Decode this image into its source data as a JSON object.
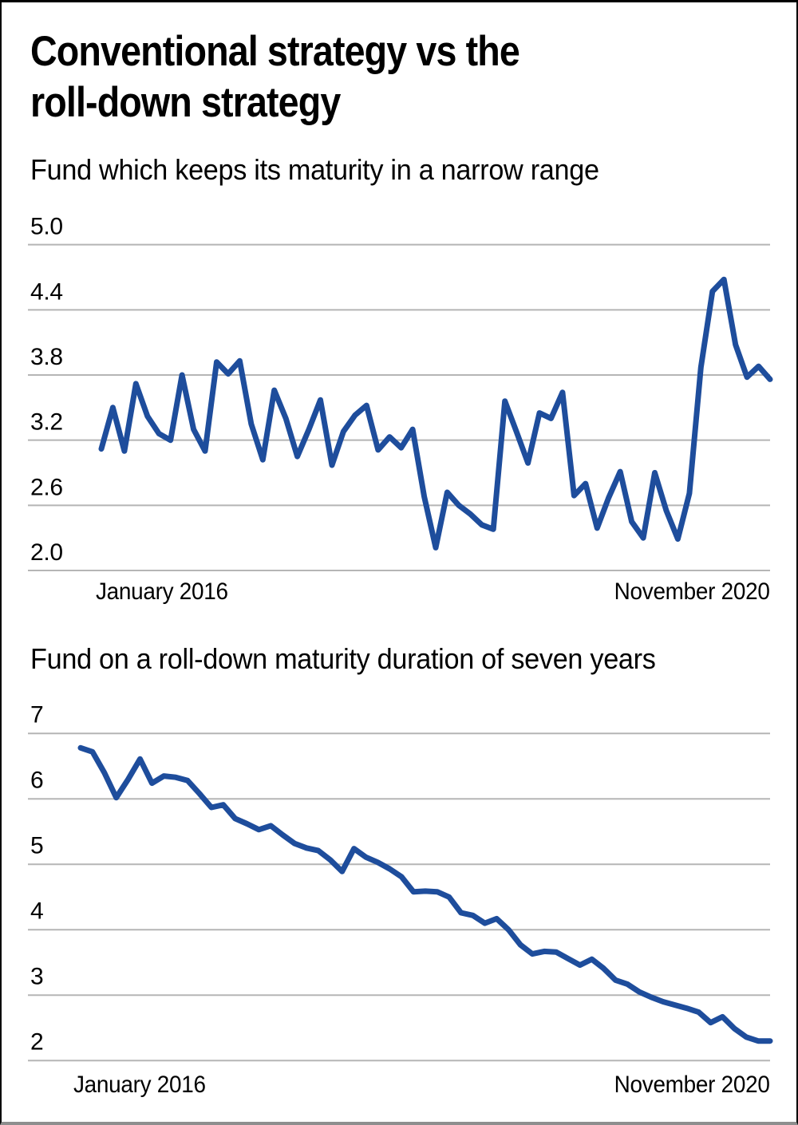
{
  "header": {
    "title_line1": "Conventional strategy vs the",
    "title_line2": "roll-down strategy"
  },
  "colors": {
    "line_blue": "#1e4d9c",
    "gridline_gray": "#b5b5b5",
    "text_black": "#000000"
  },
  "chart_data": [
    {
      "type": "line",
      "title": "Fund which keeps its maturity in a narrow range",
      "x_axis": {
        "start_label": "January 2016",
        "end_label": "November 2020",
        "interval": "monthly"
      },
      "y_ticks": [
        "5.0",
        "4.4",
        "3.8",
        "3.2",
        "2.6",
        "2.0"
      ],
      "ylim": [
        2.0,
        5.0
      ],
      "grid": true,
      "legend": "none",
      "line_color": "#1e4d9c",
      "values": [
        3.12,
        3.5,
        3.1,
        3.72,
        3.42,
        3.26,
        3.2,
        3.8,
        3.3,
        3.1,
        3.92,
        3.81,
        3.93,
        3.35,
        3.02,
        3.66,
        3.4,
        3.05,
        3.3,
        3.57,
        2.97,
        3.28,
        3.43,
        3.52,
        3.11,
        3.23,
        3.13,
        3.3,
        2.68,
        2.21,
        2.72,
        2.6,
        2.52,
        2.42,
        2.38,
        3.56,
        3.28,
        2.99,
        3.45,
        3.4,
        3.64,
        2.69,
        2.8,
        2.39,
        2.67,
        2.91,
        2.45,
        2.3,
        2.9,
        2.55,
        2.29,
        2.71,
        3.87,
        4.57,
        4.68,
        4.08,
        3.78,
        3.88,
        3.76
      ]
    },
    {
      "type": "line",
      "title": "Fund on a roll-down maturity duration of seven years",
      "x_axis": {
        "start_label": "January 2016",
        "end_label": "November 2020",
        "interval": "monthly"
      },
      "y_ticks": [
        "7",
        "6",
        "5",
        "4",
        "3",
        "2"
      ],
      "ylim": [
        2,
        7
      ],
      "grid": true,
      "legend": "none",
      "line_color": "#1e4d9c",
      "values": [
        6.78,
        6.72,
        6.4,
        6.02,
        6.3,
        6.61,
        6.24,
        6.35,
        6.33,
        6.28,
        6.08,
        5.87,
        5.91,
        5.7,
        5.62,
        5.53,
        5.59,
        5.45,
        5.32,
        5.25,
        5.21,
        5.07,
        4.89,
        5.24,
        5.11,
        5.03,
        4.93,
        4.81,
        4.58,
        4.59,
        4.58,
        4.5,
        4.26,
        4.22,
        4.1,
        4.17,
        4.0,
        3.77,
        3.63,
        3.67,
        3.66,
        3.56,
        3.46,
        3.55,
        3.41,
        3.23,
        3.17,
        3.05,
        2.97,
        2.9,
        2.85,
        2.8,
        2.74,
        2.58,
        2.67,
        2.49,
        2.36,
        2.3,
        2.3
      ]
    }
  ]
}
